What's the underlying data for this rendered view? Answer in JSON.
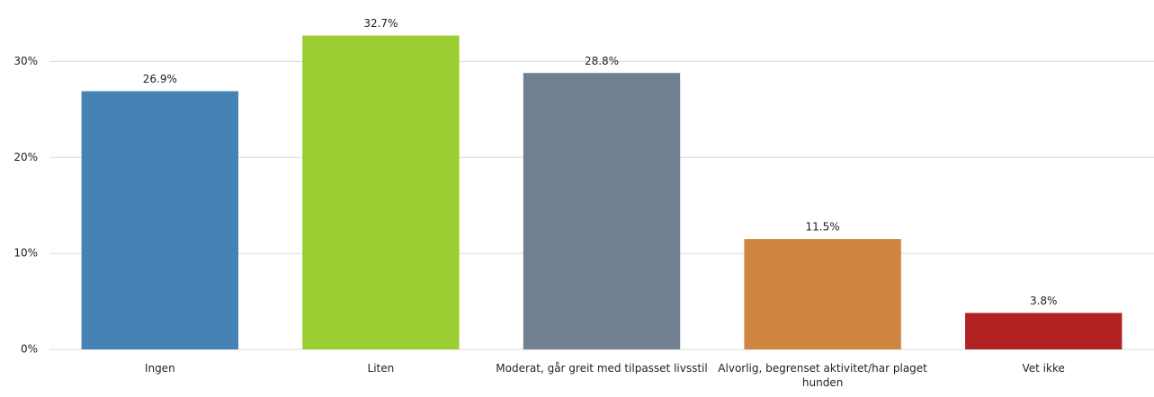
{
  "chart_data": {
    "type": "bar",
    "categories": [
      "Ingen",
      "Liten",
      "Moderat, går greit med tilpasset livsstil",
      "Alvorlig, begrenset aktivitet/har plaget hunden",
      "Vet ikke"
    ],
    "values": [
      26.9,
      32.7,
      28.8,
      11.5,
      3.8
    ],
    "value_labels": [
      "26.9%",
      "32.7%",
      "28.8%",
      "11.5%",
      "3.8%"
    ],
    "colors": [
      "#4682b4",
      "#9acd32",
      "#708090",
      "#cd853f",
      "#b22222"
    ],
    "ylim": [
      0,
      35
    ],
    "yticks": [
      {
        "value": 0,
        "label": "0%"
      },
      {
        "value": 10,
        "label": "10%"
      },
      {
        "value": 20,
        "label": "20%"
      },
      {
        "value": 30,
        "label": "30%"
      }
    ],
    "grid": true
  }
}
